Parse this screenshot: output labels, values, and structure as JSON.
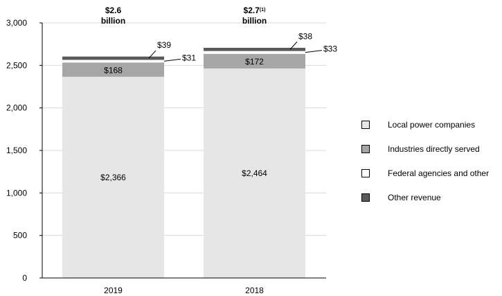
{
  "chart_data": {
    "type": "bar",
    "stacked": true,
    "categories": [
      "2019",
      "2018"
    ],
    "series": [
      {
        "name": "Local power companies",
        "values": [
          2366,
          2464
        ],
        "color": "#e6e6e6",
        "labels": [
          "$2,366",
          "$2,464"
        ]
      },
      {
        "name": "Industries directly served",
        "values": [
          168,
          172
        ],
        "color": "#a6a6a6",
        "labels": [
          "$168",
          "$172"
        ]
      },
      {
        "name": "Federal agencies and other",
        "values": [
          31,
          33
        ],
        "color": "#ffffff",
        "labels": [
          "$31",
          "$33"
        ]
      },
      {
        "name": "Other revenue",
        "values": [
          39,
          38
        ],
        "color": "#595959",
        "labels": [
          "$39",
          "$38"
        ]
      }
    ],
    "totals": [
      {
        "value": "$2.6",
        "sup": "",
        "unit": "billion"
      },
      {
        "value": "$2.7",
        "sup": "(1)",
        "unit": "billion"
      }
    ],
    "ylim": [
      0,
      3000
    ],
    "yticks": [
      0,
      500,
      1000,
      1500,
      2000,
      2500,
      3000
    ],
    "ytick_labels": [
      "0",
      "500",
      "1,000",
      "1,500",
      "2,000",
      "2,500",
      "3,000"
    ],
    "grid": true,
    "legend_position": "right"
  }
}
